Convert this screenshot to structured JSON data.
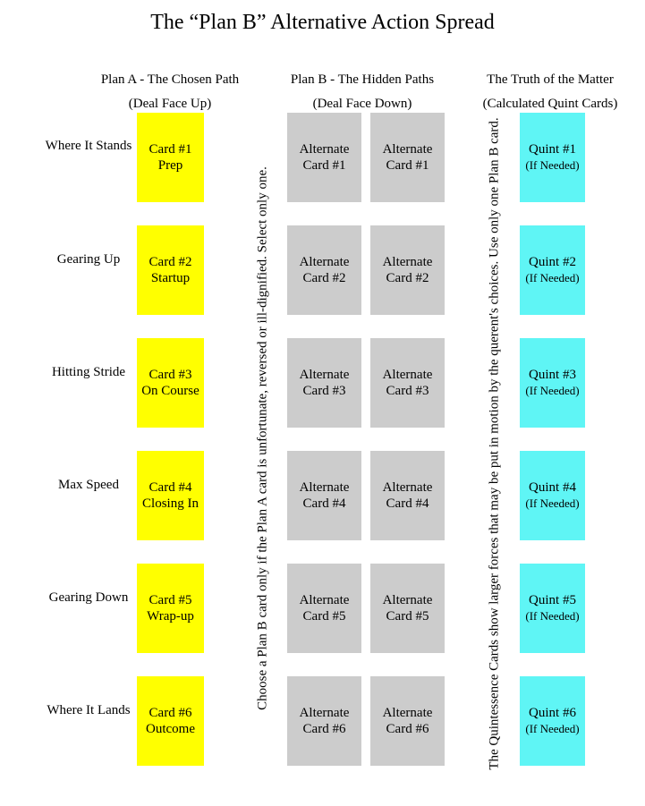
{
  "title": "The “Plan B” Alternative Action Spread",
  "columns": {
    "plan_a": {
      "heading": "Plan A - The Chosen Path",
      "sub": "(Deal Face Up)"
    },
    "plan_b": {
      "heading": "Plan B - The Hidden Paths",
      "sub": "(Deal Face Down)"
    },
    "truth": {
      "heading": "The Truth of the Matter",
      "sub": "(Calculated Quint Cards)"
    }
  },
  "rows": [
    {
      "label": "Where It Stands",
      "card_title": "Card #1",
      "card_name": "Prep",
      "alt_title": "Alternate",
      "alt_name": "Card #1",
      "quint_title": "Quint #1",
      "quint_note": "(If Needed)"
    },
    {
      "label": "Gearing Up",
      "card_title": "Card #2",
      "card_name": "Startup",
      "alt_title": "Alternate",
      "alt_name": "Card #2",
      "quint_title": "Quint #2",
      "quint_note": "(If Needed)"
    },
    {
      "label": "Hitting Stride",
      "card_title": "Card #3",
      "card_name": "On Course",
      "alt_title": "Alternate",
      "alt_name": "Card #3",
      "quint_title": "Quint #3",
      "quint_note": "(If Needed)"
    },
    {
      "label": "Max Speed",
      "card_title": "Card #4",
      "card_name": "Closing In",
      "alt_title": "Alternate",
      "alt_name": "Card #4",
      "quint_title": "Quint #4",
      "quint_note": "(If Needed)"
    },
    {
      "label": "Gearing Down",
      "card_title": "Card #5",
      "card_name": "Wrap-up",
      "alt_title": "Alternate",
      "alt_name": "Card #5",
      "quint_title": "Quint #5",
      "quint_note": "(If Needed)"
    },
    {
      "label": "Where It Lands",
      "card_title": "Card #6",
      "card_name": "Outcome",
      "alt_title": "Alternate",
      "alt_name": "Card #6",
      "quint_title": "Quint #6",
      "quint_note": "(If Needed)"
    }
  ],
  "notes": {
    "plan_b_rule": "Choose a Plan B card only if the Plan A card is unfortunate, reversed or ill-dignified. Select only one.",
    "quint_rule": "The Quintessence Cards show larger forces that may be put in motion by the querent's choices. Use only one Plan B card."
  },
  "colors": {
    "plan_a": "#ffff00",
    "plan_b": "#cccccc",
    "quint": "#5ff5f5"
  }
}
